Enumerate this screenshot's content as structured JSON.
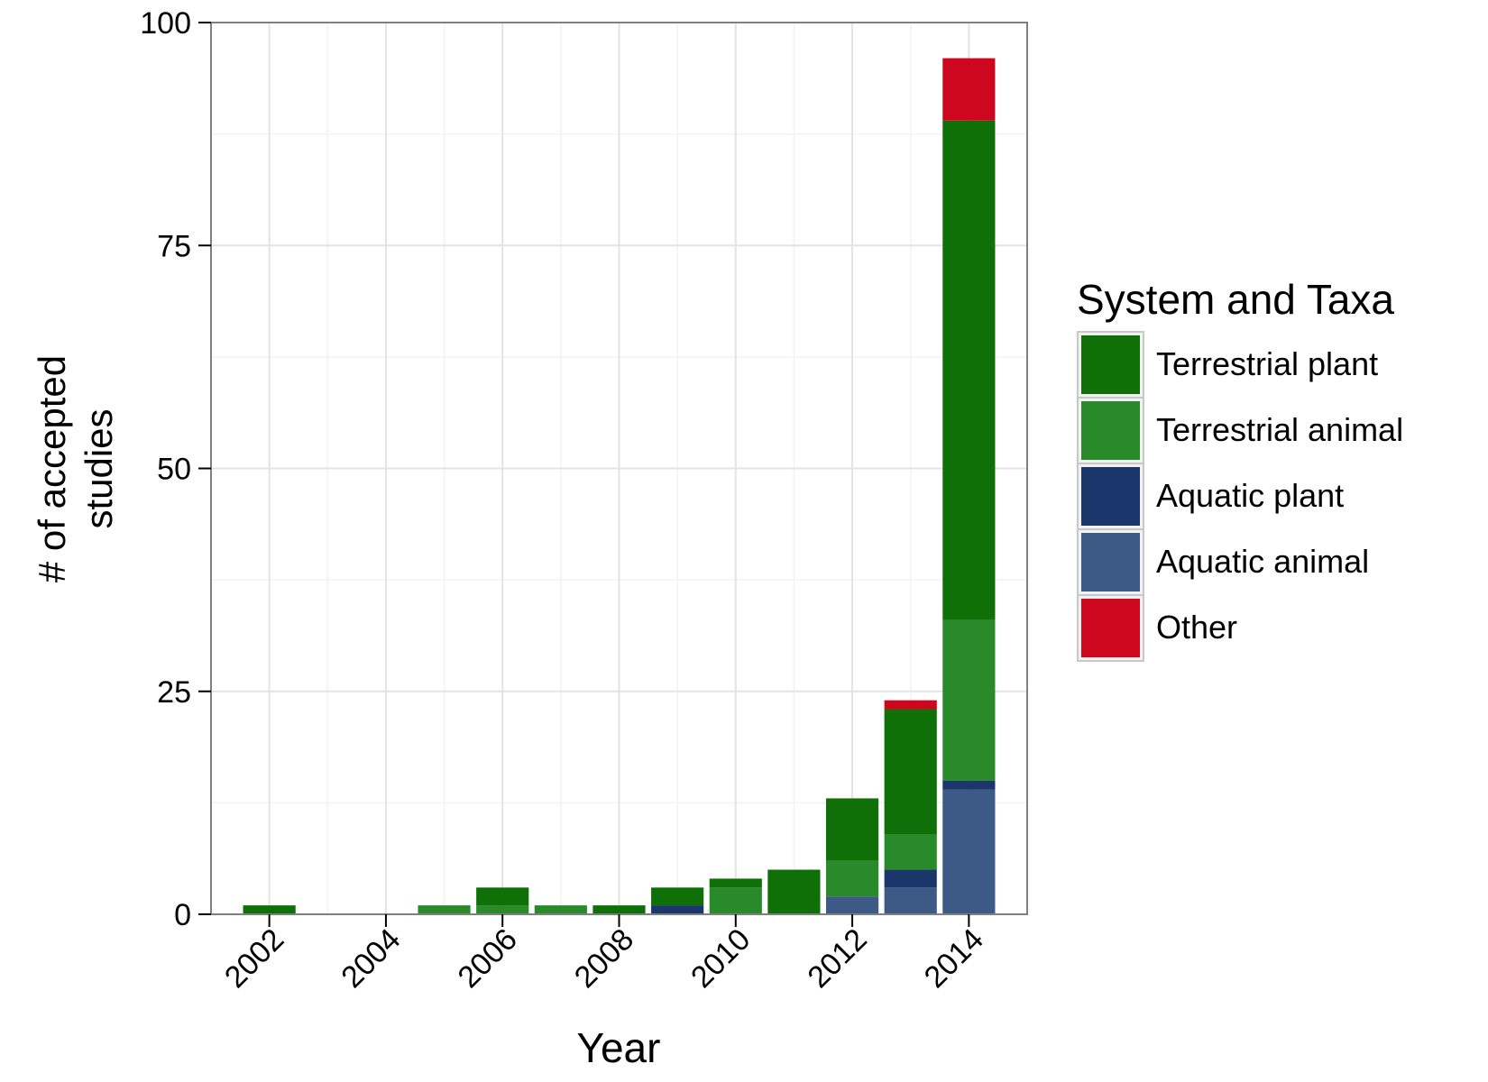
{
  "chart_data": {
    "type": "bar",
    "stacked": true,
    "xlabel": "Year",
    "ylabel_lines": [
      "# of accepted",
      "studies"
    ],
    "xlim": [
      2001,
      2015
    ],
    "ylim": [
      0,
      100
    ],
    "x_ticks": [
      2002,
      2004,
      2006,
      2008,
      2010,
      2012,
      2014
    ],
    "x_tick_labels": [
      "2002",
      "2004",
      "2006",
      "2008",
      "2010",
      "2012",
      "2014"
    ],
    "y_ticks": [
      0,
      25,
      50,
      75,
      100
    ],
    "y_tick_labels": [
      "0",
      "25",
      "50",
      "75",
      "100"
    ],
    "grid": true,
    "legend_position": "right",
    "legend_title": "System and Taxa",
    "categories": [
      2002,
      2003,
      2004,
      2005,
      2006,
      2007,
      2008,
      2009,
      2010,
      2011,
      2012,
      2013,
      2014
    ],
    "series": [
      {
        "name": "Aquatic animal",
        "color": "#3D5A87",
        "values": [
          0,
          0,
          0,
          0,
          0,
          0,
          0,
          0,
          0,
          0,
          2,
          3,
          14
        ]
      },
      {
        "name": "Aquatic plant",
        "color": "#1B366B",
        "values": [
          0,
          0,
          0,
          0,
          0,
          0,
          0,
          1,
          0,
          0,
          0,
          2,
          1
        ]
      },
      {
        "name": "Terrestrial animal",
        "color": "#298A29",
        "values": [
          0,
          0,
          0,
          1,
          1,
          1,
          0,
          0,
          3,
          0,
          4,
          4,
          18
        ]
      },
      {
        "name": "Terrestrial plant",
        "color": "#0F7008",
        "values": [
          1,
          0,
          0,
          0,
          2,
          0,
          1,
          2,
          1,
          5,
          7,
          14,
          56
        ]
      },
      {
        "name": "Other",
        "color": "#CC071E",
        "values": [
          0,
          0,
          0,
          0,
          0,
          0,
          0,
          0,
          0,
          0,
          0,
          1,
          7
        ]
      }
    ],
    "legend_order": [
      "Terrestrial plant",
      "Terrestrial animal",
      "Aquatic plant",
      "Aquatic animal",
      "Other"
    ]
  }
}
